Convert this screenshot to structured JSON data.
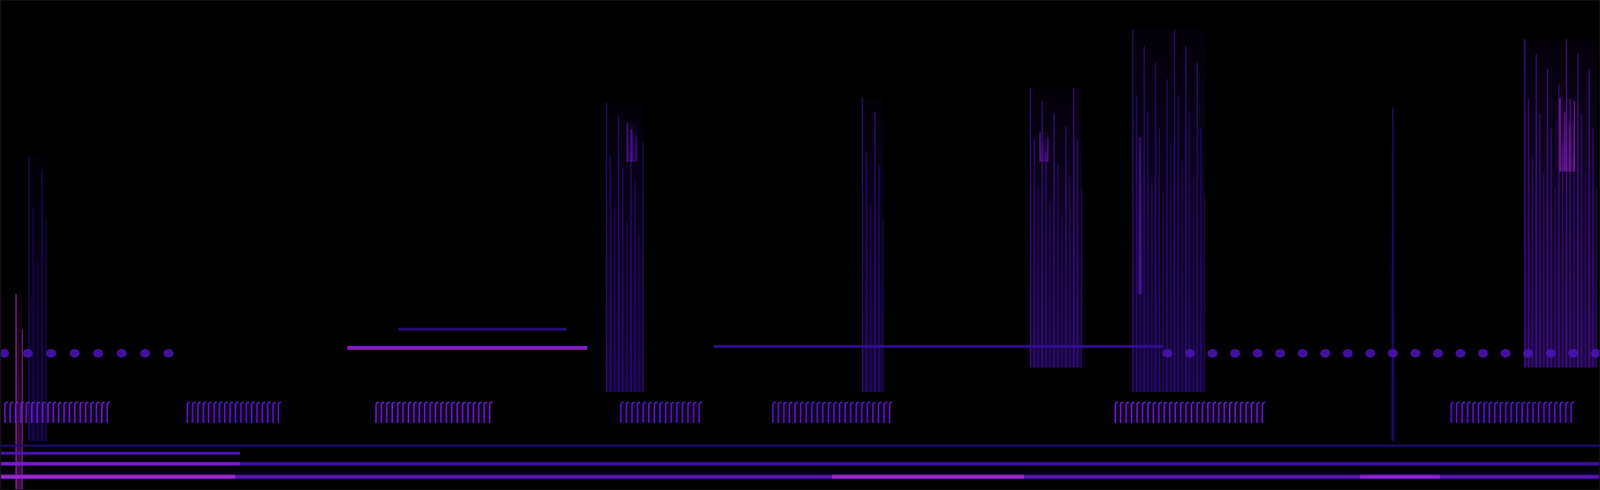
{
  "chart_data": {
    "type": "spectrogram",
    "tick_labels": false,
    "xlim": [
      0,
      100
    ],
    "ylim": [
      0,
      100
    ],
    "zlim": [
      0,
      1
    ],
    "bands": [
      {
        "t0": 0,
        "t1": 100,
        "f0": 2.3,
        "f1": 3.1,
        "level": 0.45
      },
      {
        "t0": 0,
        "t1": 14.7,
        "f0": 2.3,
        "f1": 3.1,
        "level": 0.65
      },
      {
        "t0": 52,
        "t1": 64,
        "f0": 2.3,
        "f1": 3.1,
        "level": 0.65
      },
      {
        "t0": 85,
        "t1": 90,
        "f0": 2.3,
        "f1": 3.1,
        "level": 0.6
      },
      {
        "t0": 0,
        "t1": 100,
        "f0": 5.0,
        "f1": 5.7,
        "level": 0.35
      },
      {
        "t0": 0,
        "t1": 15,
        "f0": 5.0,
        "f1": 5.7,
        "level": 0.55
      },
      {
        "t0": 0,
        "t1": 15,
        "f0": 7.2,
        "f1": 7.8,
        "level": 0.4
      },
      {
        "t0": 0,
        "t1": 100,
        "f0": 8.8,
        "f1": 9.3,
        "level": 0.2
      },
      {
        "t0": 21.7,
        "t1": 36.7,
        "f0": 28.6,
        "f1": 29.4,
        "level": 0.6
      },
      {
        "t0": 44.6,
        "t1": 72.7,
        "f0": 29.0,
        "f1": 29.6,
        "level": 0.3
      },
      {
        "t0": 24.9,
        "t1": 35.4,
        "f0": 32.5,
        "f1": 33.1,
        "level": 0.25
      }
    ],
    "pulse_trains": [
      {
        "t0": 0.3,
        "t1": 6.7,
        "f0": 13.7,
        "f1": 17.9,
        "count": 20,
        "level": 0.5
      },
      {
        "t0": 11.7,
        "t1": 17.4,
        "f0": 13.7,
        "f1": 17.9,
        "count": 18,
        "level": 0.45
      },
      {
        "t0": 23.5,
        "t1": 30.6,
        "f0": 13.7,
        "f1": 17.9,
        "count": 22,
        "level": 0.5
      },
      {
        "t0": 38.8,
        "t1": 43.7,
        "f0": 13.7,
        "f1": 17.9,
        "count": 15,
        "level": 0.45
      },
      {
        "t0": 48.3,
        "t1": 55.6,
        "f0": 13.7,
        "f1": 17.9,
        "count": 22,
        "level": 0.45
      },
      {
        "t0": 69.7,
        "t1": 78.9,
        "f0": 13.7,
        "f1": 17.9,
        "count": 28,
        "level": 0.5
      },
      {
        "t0": 90.7,
        "t1": 98.2,
        "f0": 13.7,
        "f1": 17.9,
        "count": 23,
        "level": 0.45
      }
    ],
    "dot_trains": [
      {
        "t0": 0,
        "t1": 10.8,
        "f0": 27.0,
        "f1": 28.8,
        "count": 8,
        "level": 0.4
      },
      {
        "t0": 72.7,
        "t1": 100,
        "f0": 27.0,
        "f1": 28.8,
        "count": 20,
        "level": 0.4
      }
    ],
    "bursts": [
      {
        "t0": 1.0,
        "t1": 1.4,
        "f0": 0,
        "f1": 40,
        "level": 0.7
      },
      {
        "t0": 1.8,
        "t1": 2.9,
        "f0": 10,
        "f1": 68,
        "level": 0.25
      },
      {
        "t0": 37.9,
        "t1": 40.2,
        "f0": 20,
        "f1": 79,
        "level": 0.35
      },
      {
        "t0": 39.2,
        "t1": 39.8,
        "f0": 67,
        "f1": 75,
        "level": 0.5
      },
      {
        "t0": 53.9,
        "t1": 55.2,
        "f0": 20,
        "f1": 80,
        "level": 0.35
      },
      {
        "t0": 64.4,
        "t1": 67.6,
        "f0": 25,
        "f1": 82,
        "level": 0.4
      },
      {
        "t0": 65.0,
        "t1": 65.5,
        "f0": 67,
        "f1": 73,
        "level": 0.55
      },
      {
        "t0": 70.8,
        "t1": 75.3,
        "f0": 20,
        "f1": 94,
        "level": 0.35
      },
      {
        "t0": 71.1,
        "t1": 71.4,
        "f0": 40,
        "f1": 72,
        "level": 0.5
      },
      {
        "t0": 86.9,
        "t1": 87.2,
        "f0": 10,
        "f1": 78,
        "level": 0.3
      },
      {
        "t0": 95.3,
        "t1": 99.8,
        "f0": 25,
        "f1": 92,
        "level": 0.45
      },
      {
        "t0": 97.5,
        "t1": 98.4,
        "f0": 65,
        "f1": 80,
        "level": 0.65
      }
    ]
  }
}
